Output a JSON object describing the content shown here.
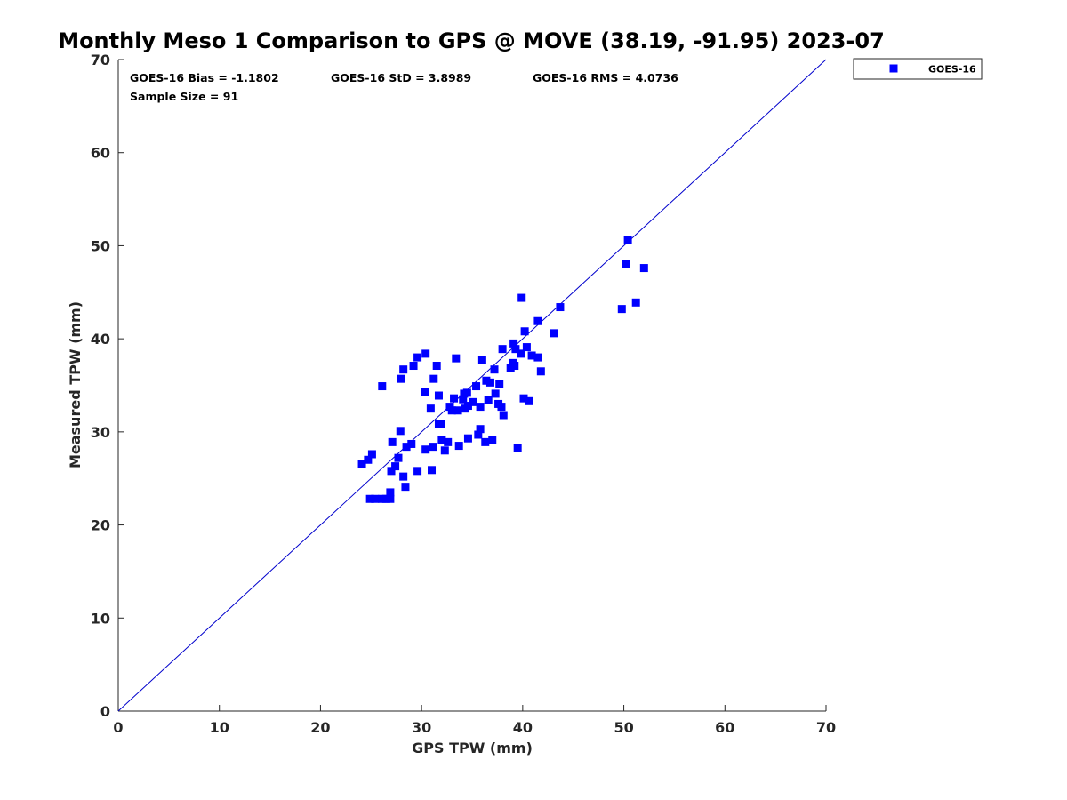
{
  "chart_data": {
    "type": "scatter",
    "title": "Monthly Meso 1 Comparison to GPS @ MOVE (38.19, -91.95) 2023-07",
    "xlabel": "GPS TPW (mm)",
    "ylabel": "Measured TPW (mm)",
    "xlim": [
      0,
      70
    ],
    "ylim": [
      0,
      70
    ],
    "xticks": [
      "0",
      "10",
      "20",
      "30",
      "40",
      "50",
      "60",
      "70"
    ],
    "yticks": [
      "0",
      "10",
      "20",
      "30",
      "40",
      "50",
      "60",
      "70"
    ],
    "grid": false,
    "legend_position": "top-right, outside plot",
    "reference_line": {
      "type": "one-to-one",
      "from": [
        0,
        0
      ],
      "to": [
        70,
        70
      ],
      "color": "#0000cc"
    },
    "stats": {
      "bias": "GOES-16 Bias = -1.1802",
      "std": "GOES-16 StD = 3.8989",
      "rms": "GOES-16 RMS = 4.0736",
      "sample_size": "Sample Size = 91"
    },
    "series": [
      {
        "name": "GOES-16",
        "color": "#0000ff",
        "marker": "square",
        "points": [
          [
            24.1,
            26.5
          ],
          [
            24.7,
            27.0
          ],
          [
            25.1,
            27.6
          ],
          [
            24.9,
            22.8
          ],
          [
            25.4,
            22.8
          ],
          [
            26.1,
            22.8
          ],
          [
            26.5,
            22.8
          ],
          [
            26.9,
            22.8
          ],
          [
            26.9,
            23.5
          ],
          [
            26.1,
            34.9
          ],
          [
            27.0,
            25.8
          ],
          [
            27.1,
            28.9
          ],
          [
            27.4,
            26.3
          ],
          [
            27.7,
            27.2
          ],
          [
            27.9,
            30.1
          ],
          [
            28.0,
            35.7
          ],
          [
            28.2,
            36.7
          ],
          [
            28.2,
            25.2
          ],
          [
            28.4,
            24.1
          ],
          [
            28.5,
            28.4
          ],
          [
            29.0,
            28.7
          ],
          [
            29.2,
            37.1
          ],
          [
            29.6,
            38.0
          ],
          [
            29.6,
            25.8
          ],
          [
            30.3,
            34.3
          ],
          [
            30.4,
            38.4
          ],
          [
            30.4,
            28.1
          ],
          [
            30.9,
            32.5
          ],
          [
            31.0,
            25.9
          ],
          [
            31.1,
            28.4
          ],
          [
            31.2,
            35.7
          ],
          [
            31.5,
            37.1
          ],
          [
            31.7,
            33.9
          ],
          [
            31.7,
            30.8
          ],
          [
            31.9,
            30.8
          ],
          [
            32.0,
            29.1
          ],
          [
            32.3,
            28.0
          ],
          [
            32.6,
            28.9
          ],
          [
            32.8,
            32.7
          ],
          [
            33.0,
            32.3
          ],
          [
            33.2,
            33.6
          ],
          [
            33.4,
            37.9
          ],
          [
            33.6,
            32.3
          ],
          [
            33.7,
            28.5
          ],
          [
            34.1,
            33.5
          ],
          [
            34.2,
            34.1
          ],
          [
            34.3,
            32.5
          ],
          [
            34.5,
            34.2
          ],
          [
            34.6,
            32.8
          ],
          [
            34.6,
            29.3
          ],
          [
            35.4,
            34.9
          ],
          [
            35.6,
            29.7
          ],
          [
            35.8,
            30.3
          ],
          [
            35.8,
            32.7
          ],
          [
            36.0,
            37.7
          ],
          [
            36.3,
            28.9
          ],
          [
            36.4,
            35.5
          ],
          [
            36.8,
            35.3
          ],
          [
            37.0,
            29.1
          ],
          [
            37.2,
            36.7
          ],
          [
            37.3,
            34.1
          ],
          [
            37.6,
            33.0
          ],
          [
            37.7,
            35.1
          ],
          [
            37.9,
            32.7
          ],
          [
            38.0,
            38.9
          ],
          [
            38.1,
            31.8
          ],
          [
            38.8,
            36.9
          ],
          [
            39.0,
            37.4
          ],
          [
            39.1,
            39.5
          ],
          [
            39.2,
            37.1
          ],
          [
            39.3,
            38.9
          ],
          [
            39.5,
            28.3
          ],
          [
            39.8,
            38.4
          ],
          [
            39.9,
            44.4
          ],
          [
            40.1,
            33.6
          ],
          [
            40.2,
            40.8
          ],
          [
            40.4,
            39.1
          ],
          [
            40.6,
            33.3
          ],
          [
            40.9,
            38.2
          ],
          [
            41.5,
            41.9
          ],
          [
            41.5,
            38.0
          ],
          [
            41.8,
            36.5
          ],
          [
            43.1,
            40.6
          ],
          [
            43.7,
            43.4
          ],
          [
            49.8,
            43.2
          ],
          [
            50.2,
            48.0
          ],
          [
            50.4,
            50.6
          ],
          [
            51.2,
            43.9
          ],
          [
            52.0,
            47.6
          ],
          [
            35.1,
            33.2
          ],
          [
            36.6,
            33.4
          ]
        ]
      }
    ]
  }
}
